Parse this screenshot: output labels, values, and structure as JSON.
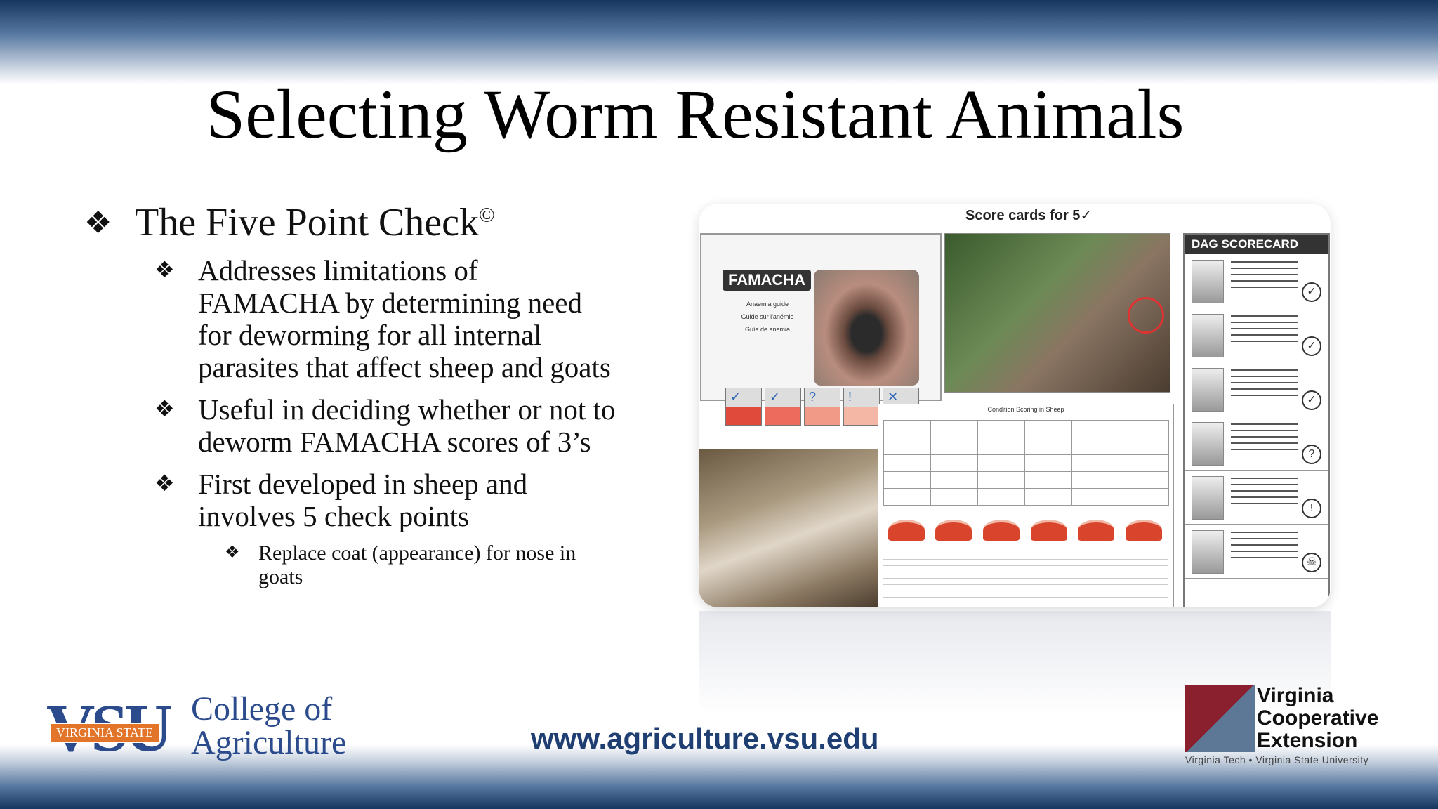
{
  "slide": {
    "title": "Selecting Worm Resistant Animals",
    "bullets": {
      "main": "The Five Point Check",
      "main_sup": "©",
      "sub": [
        "Addresses limitations of FAMACHA by determining need for deworming for all internal parasites that affect sheep and goats",
        "Useful in deciding whether or not to deworm FAMACHA scores of 3’s",
        "First developed in sheep and involves 5 check points"
      ],
      "subsub": "Replace coat (appearance) for nose in goats"
    },
    "marker_glyph": "❖"
  },
  "figure": {
    "score_cards_title": "Score cards for 5✓",
    "famacha_label": "FAMACHA",
    "famacha_lines": [
      "Anaemia guide",
      "Guide sur l'anémie",
      "Guía de anemia"
    ],
    "swatch_marks": [
      "✓",
      "✓",
      "?",
      "!",
      "✕"
    ],
    "swatch_colors": [
      "#e04a3b",
      "#ec6b5c",
      "#f19a87",
      "#f4b7a5",
      "#f8d8cc"
    ],
    "dag_title": "DAG SCORECARD",
    "dag_marks": [
      "✓",
      "✓",
      "✓",
      "?",
      "!",
      "☠"
    ],
    "condition_title": "Condition Scoring in Sheep"
  },
  "footer": {
    "vsu_letters": "VSU",
    "vsu_banner": "VIRGINIA STATE",
    "college_line1": "College of",
    "college_line2": "Agriculture",
    "url": "www.agriculture.vsu.edu",
    "vce_line1": "Virginia",
    "vce_line2": "Cooperative",
    "vce_line3": "Extension",
    "vce_sub": "Virginia Tech  •  Virginia State University"
  }
}
